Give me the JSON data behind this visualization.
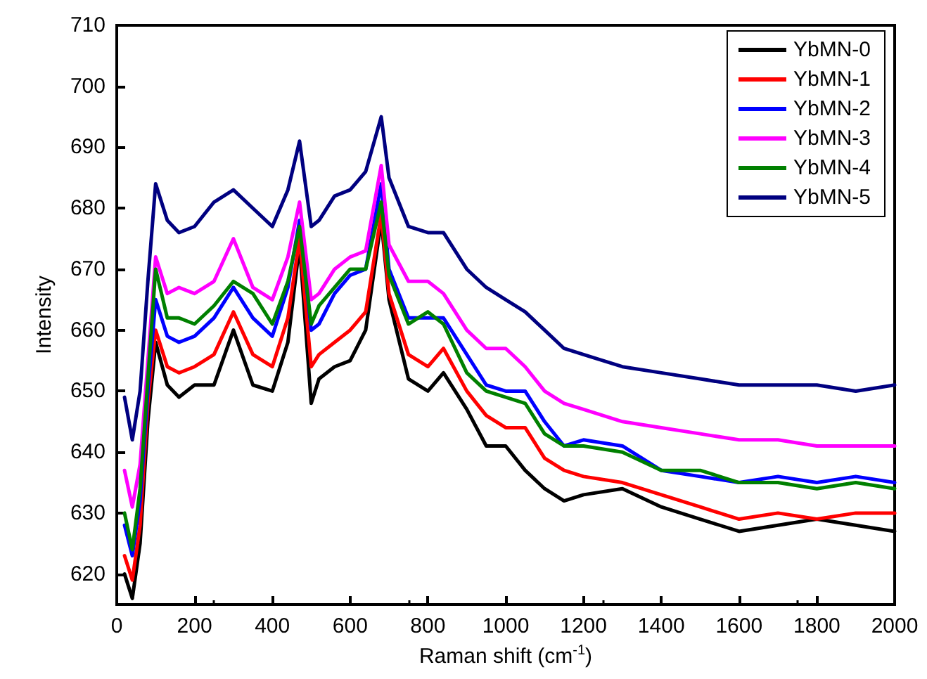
{
  "chart_data": {
    "type": "line",
    "xlabel": "Raman shift (cm$^{-1}$)",
    "ylabel": "Intensity",
    "x": [
      20,
      40,
      60,
      80,
      100,
      130,
      160,
      200,
      250,
      300,
      350,
      400,
      440,
      470,
      500,
      520,
      560,
      600,
      640,
      680,
      700,
      750,
      800,
      840,
      900,
      950,
      1000,
      1050,
      1100,
      1150,
      1200,
      1300,
      1400,
      1500,
      1600,
      1700,
      1800,
      1900,
      2000
    ],
    "series": [
      {
        "name": "YbMN-0",
        "color": "#000000",
        "values": [
          620,
          616,
          625,
          645,
          658,
          651,
          649,
          651,
          651,
          660,
          651,
          650,
          658,
          674,
          648,
          652,
          654,
          655,
          660,
          678,
          665,
          652,
          650,
          653,
          647,
          641,
          641,
          637,
          634,
          632,
          633,
          634,
          631,
          629,
          627,
          628,
          629,
          628,
          627
        ]
      },
      {
        "name": "YbMN-1",
        "color": "#ff0000",
        "values": [
          623,
          619,
          628,
          648,
          660,
          654,
          653,
          654,
          656,
          663,
          656,
          654,
          662,
          675,
          654,
          656,
          658,
          660,
          663,
          679,
          666,
          656,
          654,
          657,
          650,
          646,
          644,
          644,
          639,
          637,
          636,
          635,
          633,
          631,
          629,
          630,
          629,
          630,
          630
        ]
      },
      {
        "name": "YbMN-2",
        "color": "#0000ff",
        "values": [
          628,
          623,
          632,
          650,
          665,
          659,
          658,
          659,
          662,
          667,
          662,
          659,
          667,
          678,
          660,
          661,
          666,
          669,
          670,
          684,
          670,
          662,
          662,
          662,
          656,
          651,
          650,
          650,
          645,
          641,
          642,
          641,
          637,
          636,
          635,
          636,
          635,
          636,
          635
        ]
      },
      {
        "name": "YbMN-3",
        "color": "#ff00ff",
        "values": [
          637,
          631,
          638,
          655,
          672,
          666,
          667,
          666,
          668,
          675,
          667,
          665,
          672,
          681,
          665,
          666,
          670,
          672,
          673,
          687,
          674,
          668,
          668,
          666,
          660,
          657,
          657,
          654,
          650,
          648,
          647,
          645,
          644,
          643,
          642,
          642,
          641,
          641,
          641
        ]
      },
      {
        "name": "YbMN-4",
        "color": "#008000",
        "values": [
          630,
          624,
          634,
          652,
          670,
          662,
          662,
          661,
          664,
          668,
          666,
          661,
          668,
          677,
          661,
          664,
          667,
          670,
          670,
          681,
          669,
          661,
          663,
          661,
          653,
          650,
          649,
          648,
          643,
          641,
          641,
          640,
          637,
          637,
          635,
          635,
          634,
          635,
          634
        ]
      },
      {
        "name": "YbMN-5",
        "color": "#000080",
        "values": [
          649,
          642,
          650,
          668,
          684,
          678,
          676,
          677,
          681,
          683,
          680,
          677,
          683,
          691,
          677,
          678,
          682,
          683,
          686,
          695,
          685,
          677,
          676,
          676,
          670,
          667,
          665,
          663,
          660,
          657,
          656,
          654,
          653,
          652,
          651,
          651,
          651,
          650,
          651
        ]
      }
    ],
    "xlim": [
      0,
      2000
    ],
    "xticks": [
      0,
      200,
      400,
      600,
      800,
      1000,
      1200,
      1400,
      1600,
      1800,
      2000
    ],
    "ylim": [
      615,
      710
    ],
    "yticks": [
      620,
      630,
      640,
      650,
      660,
      670,
      680,
      690,
      700,
      710
    ],
    "legend": "top right",
    "grid": false,
    "marker": "none",
    "line_style": "solid"
  }
}
